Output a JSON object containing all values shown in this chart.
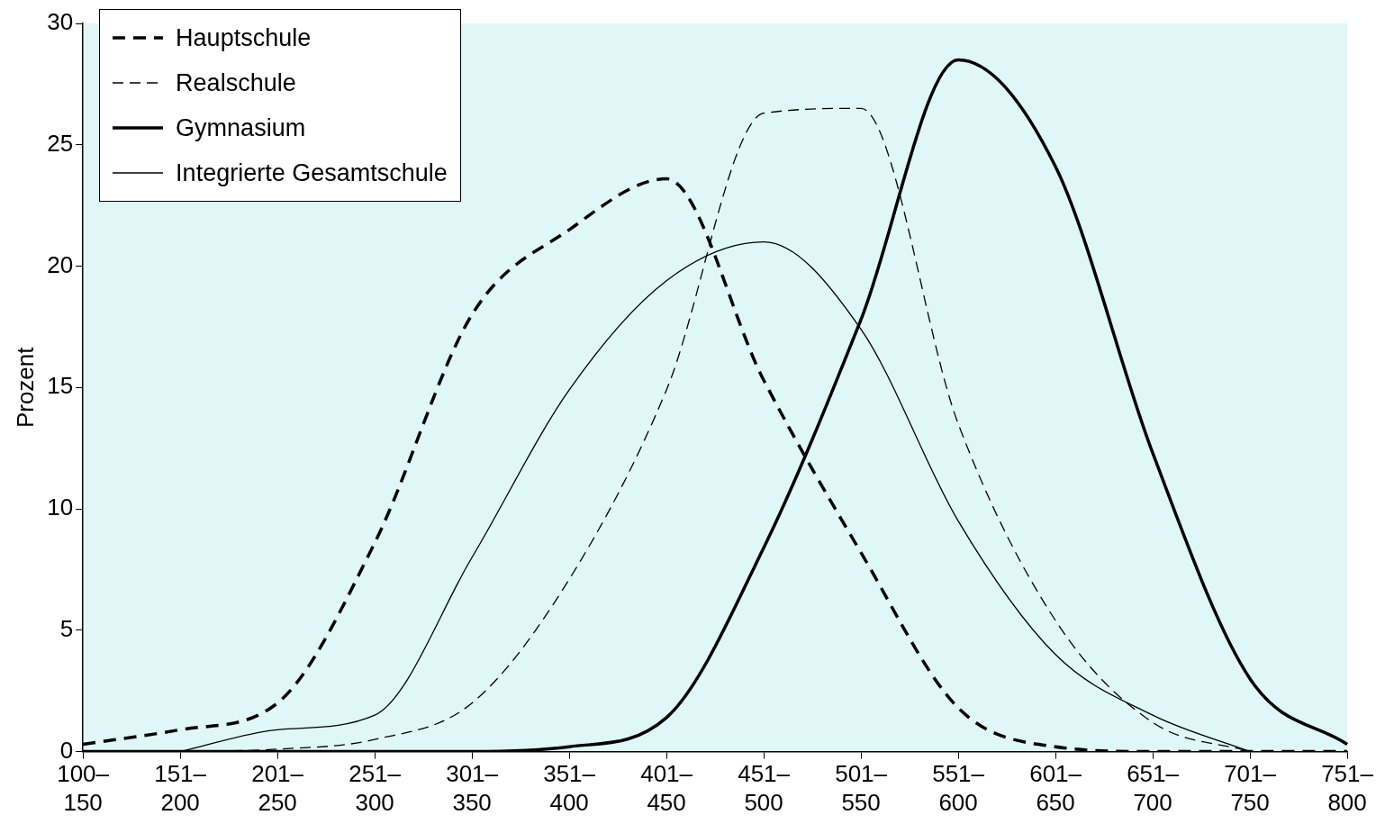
{
  "chart_data": {
    "type": "line",
    "ylabel": "Prozent",
    "categories": [
      "100–150",
      "151–200",
      "201–250",
      "251–300",
      "301–350",
      "351–400",
      "401–450",
      "451–500",
      "501–550",
      "551–600",
      "601–650",
      "651–700",
      "701–750",
      "751–800"
    ],
    "ylim": [
      0,
      30
    ],
    "yticks": [
      0,
      5,
      10,
      15,
      20,
      25,
      30
    ],
    "grid": false,
    "legend": "top left",
    "marker": "none",
    "series": [
      {
        "name": "Hauptschule",
        "color": "#000000",
        "line_style": "dashed",
        "values": [
          0.3,
          0.9,
          2.0,
          8.6,
          18.0,
          21.5,
          23.6,
          15.3,
          8.2,
          1.8,
          0.2,
          0,
          0,
          0
        ]
      },
      {
        "name": "Realschule",
        "color": "#000000",
        "line_style": "dashed",
        "values": [
          null,
          0,
          0.1,
          0.5,
          2.0,
          7.1,
          14.9,
          26.3,
          26.5,
          13.5,
          5.4,
          1.2,
          0,
          null
        ]
      },
      {
        "name": "Gymnasium",
        "color": "#000000",
        "line_style": "solid",
        "values": [
          0,
          0,
          0,
          0,
          0,
          0.2,
          1.4,
          8.4,
          17.8,
          28.5,
          24.1,
          12.3,
          3.0,
          0.3
        ]
      },
      {
        "name": "Integrierte Gesamtschule",
        "color": "#000000",
        "line_style": "solid",
        "values": [
          null,
          0,
          0.9,
          1.5,
          8.0,
          14.9,
          19.4,
          21.0,
          17.4,
          9.5,
          4.0,
          1.5,
          0,
          null
        ]
      }
    ]
  }
}
